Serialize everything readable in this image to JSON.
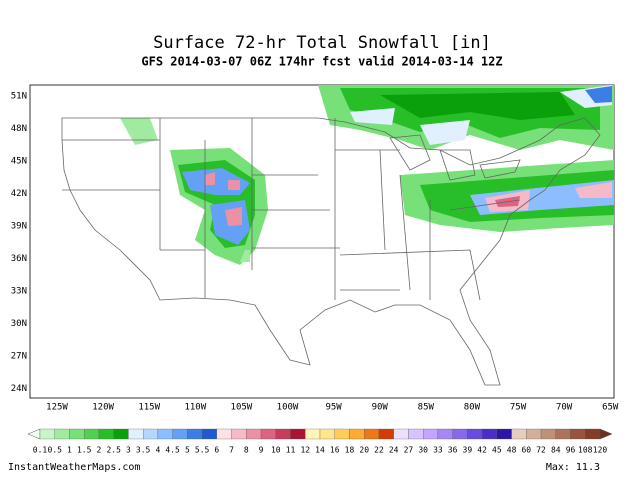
{
  "header": {
    "title": "Surface 72-hr Total Snowfall [in]",
    "subtitle": "GFS 2014-03-07 06Z 174hr fcst valid 2014-03-14 12Z"
  },
  "map": {
    "lat_labels": [
      "51N",
      "48N",
      "45N",
      "42N",
      "39N",
      "36N",
      "33N",
      "30N",
      "27N",
      "24N"
    ],
    "lon_labels": [
      "125W",
      "120W",
      "115W",
      "110W",
      "105W",
      "100W",
      "95W",
      "90W",
      "85W",
      "80W",
      "75W",
      "70W",
      "65W"
    ]
  },
  "colorbar": {
    "labels": [
      "0.1",
      "0.5",
      "1",
      "1.5",
      "2",
      "2.5",
      "3",
      "3.5",
      "4",
      "4.5",
      "5",
      "5.5",
      "6",
      "7",
      "8",
      "9",
      "10",
      "11",
      "12",
      "14",
      "16",
      "18",
      "20",
      "22",
      "24",
      "27",
      "30",
      "33",
      "36",
      "39",
      "42",
      "45",
      "48",
      "60",
      "72",
      "84",
      "96",
      "108",
      "120"
    ],
    "colors": [
      "#c8f5c8",
      "#a0eba0",
      "#78e078",
      "#50d250",
      "#28be28",
      "#0aa00a",
      "#e1f0ff",
      "#b4d7ff",
      "#8cbeff",
      "#64a0f5",
      "#3c7de6",
      "#1e5ad2",
      "#ffe1e6",
      "#f5b9c8",
      "#eb91a5",
      "#dc6482",
      "#c83c5a",
      "#aa1432",
      "#fff5b4",
      "#ffe68c",
      "#ffcd5a",
      "#ffaa32",
      "#f07814",
      "#d23c00",
      "#ebe1ff",
      "#d7c3ff",
      "#c3a5ff",
      "#a587f5",
      "#8769eb",
      "#694be1",
      "#4b2dc8",
      "#2d14aa",
      "#e6cdbe",
      "#d2af9b",
      "#be9178",
      "#aa735a",
      "#96553c",
      "#823c28"
    ],
    "under_color": "#f0fff0",
    "over_color": "#6e2d1e"
  },
  "footer": {
    "source": "InstantWeatherMaps.com",
    "max": "Max:  11.3"
  }
}
